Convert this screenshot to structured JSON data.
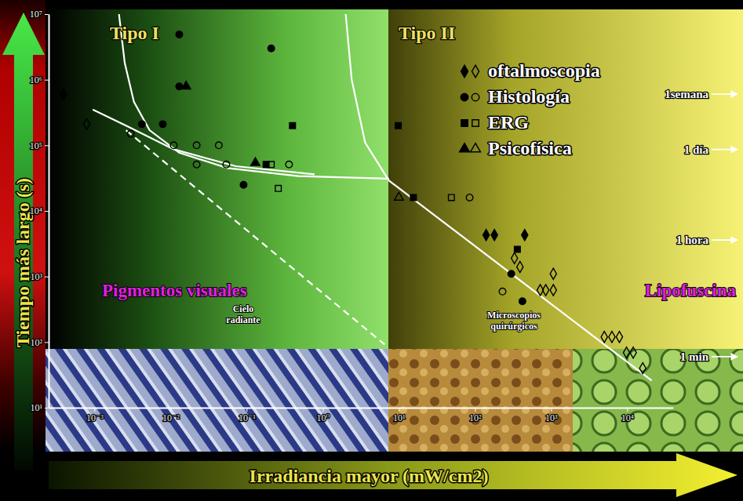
{
  "chart_data": {
    "type": "scatter",
    "log": true,
    "legend": "top-right",
    "x_label": "Irradiancia mayor (mW/cm2)",
    "y_label": "Tiempo más largo (s)",
    "xlim": [
      0.00025,
      40000
    ],
    "ylim": [
      10,
      10000000
    ],
    "xticks": [
      {
        "value": 0.001,
        "label": "10⁻³"
      },
      {
        "value": 0.01,
        "label": "10⁻²"
      },
      {
        "value": 0.1,
        "label": "10⁻¹"
      },
      {
        "value": 1,
        "label": "10⁰"
      },
      {
        "value": 10,
        "label": "10¹"
      },
      {
        "value": 100,
        "label": "10²"
      },
      {
        "value": 1000,
        "label": "10³"
      },
      {
        "value": 10000,
        "label": "10⁴"
      }
    ],
    "yticks": [
      {
        "value": 10,
        "label": "10¹"
      },
      {
        "value": 100,
        "label": "10²"
      },
      {
        "value": 1000,
        "label": "10³"
      },
      {
        "value": 10000,
        "label": "10⁴"
      },
      {
        "value": 100000,
        "label": "10⁵"
      },
      {
        "value": 1000000,
        "label": "10⁶"
      },
      {
        "value": 10000000,
        "label": "10⁷"
      }
    ],
    "regions": [
      {
        "label": "Tipo I",
        "mechanism": "Pigmentos visuales"
      },
      {
        "label": "Tipo II",
        "mechanism": "Lipofuscina"
      }
    ],
    "annotations": [
      "Cielo radiante",
      "Microscopios quirúrgicos"
    ],
    "time_marks": [
      {
        "value": 604800,
        "label": "1semana"
      },
      {
        "value": 86400,
        "label": "1 día"
      },
      {
        "value": 3600,
        "label": "1 hora"
      },
      {
        "value": 60,
        "label": "1 min"
      }
    ],
    "series": [
      {
        "name": "oftalmoscopia",
        "type": "scatter",
        "marker": "diamond",
        "color": "#000000",
        "x": [
          0.00039,
          140,
          180,
          450
        ],
        "values": [
          600000,
          4300,
          4300,
          4300
        ]
      },
      {
        "name": "oftalmoscopia",
        "type": "scatter",
        "marker": "diamond-open",
        "color": "#000000",
        "x": [
          0.00079,
          330,
          390,
          720,
          850,
          1070,
          1070,
          5000,
          6300,
          7900,
          9800,
          12000,
          16000
        ],
        "values": [
          210000,
          1900,
          1400,
          620,
          620,
          620,
          1100,
          120,
          120,
          120,
          69,
          69,
          40
        ]
      },
      {
        "name": "Histología",
        "type": "scatter",
        "marker": "circle",
        "color": "#000000",
        "x": [
          0.013,
          0.21,
          0.0042,
          0.0079,
          0.013,
          0.091,
          300,
          420
        ],
        "values": [
          4900000,
          3000000,
          210000,
          210000,
          790000,
          25000,
          1100,
          420
        ]
      },
      {
        "name": "Histología",
        "type": "scatter",
        "marker": "circle-open",
        "color": "#000000",
        "x": [
          0.003,
          0.011,
          0.022,
          0.043,
          0.022,
          0.054,
          0.36,
          85,
          230
        ],
        "values": [
          150000,
          100000,
          100000,
          100000,
          51000,
          51000,
          51000,
          16000,
          590
        ]
      },
      {
        "name": "ERG",
        "type": "scatter",
        "marker": "square",
        "color": "#000000",
        "x": [
          0.4,
          0.18,
          9.8,
          15.5,
          360
        ],
        "values": [
          200000,
          51000,
          200000,
          16000,
          2600
        ]
      },
      {
        "name": "ERG",
        "type": "scatter",
        "marker": "square-open",
        "color": "#000000",
        "x": [
          0.21,
          0.26,
          49
        ],
        "values": [
          51000,
          22000,
          16000
        ]
      },
      {
        "name": "Psicofísica",
        "type": "scatter",
        "marker": "triangle",
        "color": "#000000",
        "x": [
          0.016,
          0.13
        ],
        "values": [
          790000,
          54000
        ]
      },
      {
        "name": "Psicofísica",
        "type": "scatter",
        "marker": "triangle-open",
        "color": "#000000",
        "x": [
          10
        ],
        "values": [
          16000
        ]
      },
      {
        "type": "line",
        "line_style": "solid",
        "color": "#ffffff",
        "x": [
          0.0021,
          0.0025,
          0.0033,
          0.0053,
          0.013,
          0.056,
          0.48,
          7.4
        ],
        "values": [
          10000000,
          1800000,
          460000,
          170000,
          77000,
          45000,
          34000,
          31000
        ]
      },
      {
        "type": "line",
        "line_style": "solid",
        "color": "#ffffff",
        "x": [
          0.00095,
          0.0026,
          0.011,
          0.072,
          0.78
        ],
        "values": [
          350000,
          200000,
          87000,
          48000,
          36000
        ]
      },
      {
        "type": "line",
        "line_style": "solid",
        "color": "#ffffff",
        "x": [
          2.0,
          2.4,
          3.6,
          7.4
        ],
        "values": [
          10000000,
          1000000,
          110000,
          29000
        ]
      },
      {
        "type": "line",
        "line_style": "dashed",
        "color": "#ffffff",
        "x": [
          0.0026,
          6.5
        ],
        "values": [
          170000,
          92
        ]
      },
      {
        "type": "line",
        "line_style": "solid",
        "color": "#ffffff",
        "x": [
          7.4,
          21000
        ],
        "values": [
          29000,
          26
        ]
      }
    ]
  }
}
